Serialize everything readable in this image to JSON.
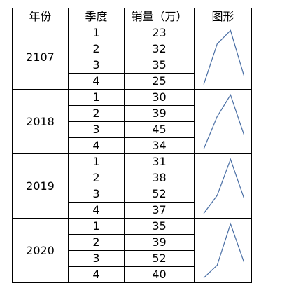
{
  "headers": {
    "year": "年份",
    "quarter": "季度",
    "sales": "销量（万）",
    "chart": "图形"
  },
  "years": [
    {
      "year": "2107",
      "rows": [
        {
          "quarter": "1",
          "sales": "23"
        },
        {
          "quarter": "2",
          "sales": "32"
        },
        {
          "quarter": "3",
          "sales": "35"
        },
        {
          "quarter": "4",
          "sales": "25"
        }
      ]
    },
    {
      "year": "2018",
      "rows": [
        {
          "quarter": "1",
          "sales": "30"
        },
        {
          "quarter": "2",
          "sales": "39"
        },
        {
          "quarter": "3",
          "sales": "45"
        },
        {
          "quarter": "4",
          "sales": "34"
        }
      ]
    },
    {
      "year": "2019",
      "rows": [
        {
          "quarter": "1",
          "sales": "31"
        },
        {
          "quarter": "2",
          "sales": "38"
        },
        {
          "quarter": "3",
          "sales": "52"
        },
        {
          "quarter": "4",
          "sales": "37"
        }
      ]
    },
    {
      "year": "2020",
      "rows": [
        {
          "quarter": "1",
          "sales": "35"
        },
        {
          "quarter": "2",
          "sales": "39"
        },
        {
          "quarter": "3",
          "sales": "52"
        },
        {
          "quarter": "4",
          "sales": "40"
        }
      ]
    }
  ],
  "sparkline_color": "#4a6fa5",
  "chart_data": {
    "type": "line",
    "x": [
      "1",
      "2",
      "3",
      "4"
    ],
    "series": [
      {
        "name": "2107",
        "values": [
          23,
          32,
          35,
          25
        ]
      },
      {
        "name": "2018",
        "values": [
          30,
          39,
          45,
          34
        ]
      },
      {
        "name": "2019",
        "values": [
          31,
          38,
          52,
          37
        ]
      },
      {
        "name": "2020",
        "values": [
          35,
          39,
          52,
          40
        ]
      }
    ],
    "title": "",
    "xlabel": "",
    "ylabel": "",
    "grid": false,
    "legend": "none"
  }
}
